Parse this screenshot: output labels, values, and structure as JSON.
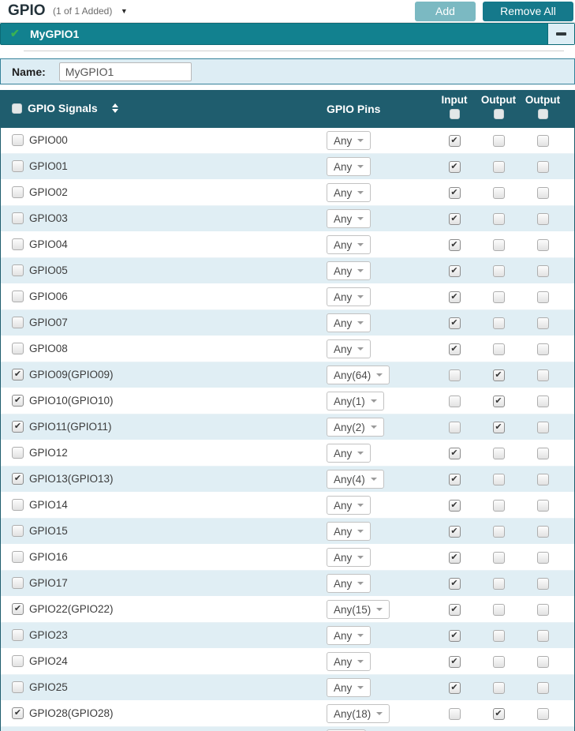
{
  "page": {
    "title": "GPIO",
    "subtitle": "(1 of 1 Added)",
    "add_label": "Add",
    "remove_all_label": "Remove All"
  },
  "instance": {
    "name": "MyGPIO1",
    "status": "configured",
    "collapse_glyph": "minus"
  },
  "form": {
    "name_label": "Name:",
    "name_value": "MyGPIO1"
  },
  "table": {
    "signals_header": "GPIO Signals",
    "pins_header": "GPIO Pins",
    "direction_columns": [
      "Input",
      "Output",
      "Output"
    ],
    "rows": [
      {
        "label": "GPIO00",
        "selected": false,
        "pin": "Any",
        "input": true,
        "output1": false,
        "output2": false
      },
      {
        "label": "GPIO01",
        "selected": false,
        "pin": "Any",
        "input": true,
        "output1": false,
        "output2": false
      },
      {
        "label": "GPIO02",
        "selected": false,
        "pin": "Any",
        "input": true,
        "output1": false,
        "output2": false
      },
      {
        "label": "GPIO03",
        "selected": false,
        "pin": "Any",
        "input": true,
        "output1": false,
        "output2": false
      },
      {
        "label": "GPIO04",
        "selected": false,
        "pin": "Any",
        "input": true,
        "output1": false,
        "output2": false
      },
      {
        "label": "GPIO05",
        "selected": false,
        "pin": "Any",
        "input": true,
        "output1": false,
        "output2": false
      },
      {
        "label": "GPIO06",
        "selected": false,
        "pin": "Any",
        "input": true,
        "output1": false,
        "output2": false
      },
      {
        "label": "GPIO07",
        "selected": false,
        "pin": "Any",
        "input": true,
        "output1": false,
        "output2": false
      },
      {
        "label": "GPIO08",
        "selected": false,
        "pin": "Any",
        "input": true,
        "output1": false,
        "output2": false
      },
      {
        "label": "GPIO09(GPIO09)",
        "selected": true,
        "pin": "Any(64)",
        "input": false,
        "output1": true,
        "output2": false
      },
      {
        "label": "GPIO10(GPIO10)",
        "selected": true,
        "pin": "Any(1)",
        "input": false,
        "output1": true,
        "output2": false
      },
      {
        "label": "GPIO11(GPIO11)",
        "selected": true,
        "pin": "Any(2)",
        "input": false,
        "output1": true,
        "output2": false
      },
      {
        "label": "GPIO12",
        "selected": false,
        "pin": "Any",
        "input": true,
        "output1": false,
        "output2": false
      },
      {
        "label": "GPIO13(GPIO13)",
        "selected": true,
        "pin": "Any(4)",
        "input": true,
        "output1": false,
        "output2": false
      },
      {
        "label": "GPIO14",
        "selected": false,
        "pin": "Any",
        "input": true,
        "output1": false,
        "output2": false
      },
      {
        "label": "GPIO15",
        "selected": false,
        "pin": "Any",
        "input": true,
        "output1": false,
        "output2": false
      },
      {
        "label": "GPIO16",
        "selected": false,
        "pin": "Any",
        "input": true,
        "output1": false,
        "output2": false
      },
      {
        "label": "GPIO17",
        "selected": false,
        "pin": "Any",
        "input": true,
        "output1": false,
        "output2": false
      },
      {
        "label": "GPIO22(GPIO22)",
        "selected": true,
        "pin": "Any(15)",
        "input": true,
        "output1": false,
        "output2": false
      },
      {
        "label": "GPIO23",
        "selected": false,
        "pin": "Any",
        "input": true,
        "output1": false,
        "output2": false
      },
      {
        "label": "GPIO24",
        "selected": false,
        "pin": "Any",
        "input": true,
        "output1": false,
        "output2": false
      },
      {
        "label": "GPIO25",
        "selected": false,
        "pin": "Any",
        "input": true,
        "output1": false,
        "output2": false
      },
      {
        "label": "GPIO28(GPIO28)",
        "selected": true,
        "pin": "Any(18)",
        "input": false,
        "output1": true,
        "output2": false
      }
    ]
  },
  "colors": {
    "header_teal": "#1f5d6e",
    "bar_teal": "#12818f",
    "add_button": "#7bb9c2",
    "remove_button": "#15798b",
    "alt_row": "#e0eef4",
    "panel_bg": "#ddedf4",
    "panel_border": "#35829a",
    "green_check": "#3bb253"
  }
}
